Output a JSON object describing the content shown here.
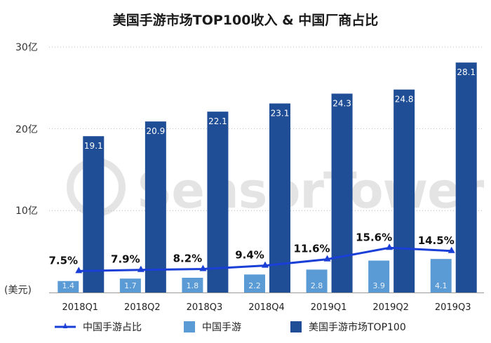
{
  "chart_data": {
    "type": "bar",
    "title": "美国手游市场TOP100收入 & 中国厂商占比",
    "y_unit_label": "(美元)",
    "y_ticks": [
      "30亿",
      "20亿",
      "10亿"
    ],
    "y_tick_values": [
      30,
      20,
      10
    ],
    "ylim": [
      0,
      30
    ],
    "categories": [
      "2018Q1",
      "2018Q2",
      "2018Q3",
      "2018Q4",
      "2019Q1",
      "2019Q2",
      "2019Q3"
    ],
    "series": [
      {
        "name": "中国手游",
        "type": "bar",
        "color": "#5b9bd5",
        "values": [
          1.4,
          1.7,
          1.8,
          2.2,
          2.8,
          3.9,
          4.1
        ],
        "labels": [
          "1.4",
          "1.7",
          "1.8",
          "2.2",
          "2.8",
          "3.9",
          "4.1"
        ]
      },
      {
        "name": "美国手游市场TOP100",
        "type": "bar",
        "color": "#1f4e96",
        "values": [
          19.1,
          20.9,
          22.1,
          23.1,
          24.3,
          24.8,
          28.1
        ],
        "labels": [
          "19.1",
          "20.9",
          "22.1",
          "23.1",
          "24.3",
          "24.8",
          "28.1"
        ]
      },
      {
        "name": "中国手游占比",
        "type": "line",
        "color": "#1a3fd6",
        "values": [
          7.5,
          7.9,
          8.2,
          9.4,
          11.6,
          15.6,
          14.5
        ],
        "labels": [
          "7.5%",
          "7.9%",
          "8.2%",
          "9.4%",
          "11.6%",
          "15.6%",
          "14.5%"
        ]
      }
    ],
    "grid": true,
    "legend_position": "bottom"
  },
  "watermark": "SensorTower"
}
